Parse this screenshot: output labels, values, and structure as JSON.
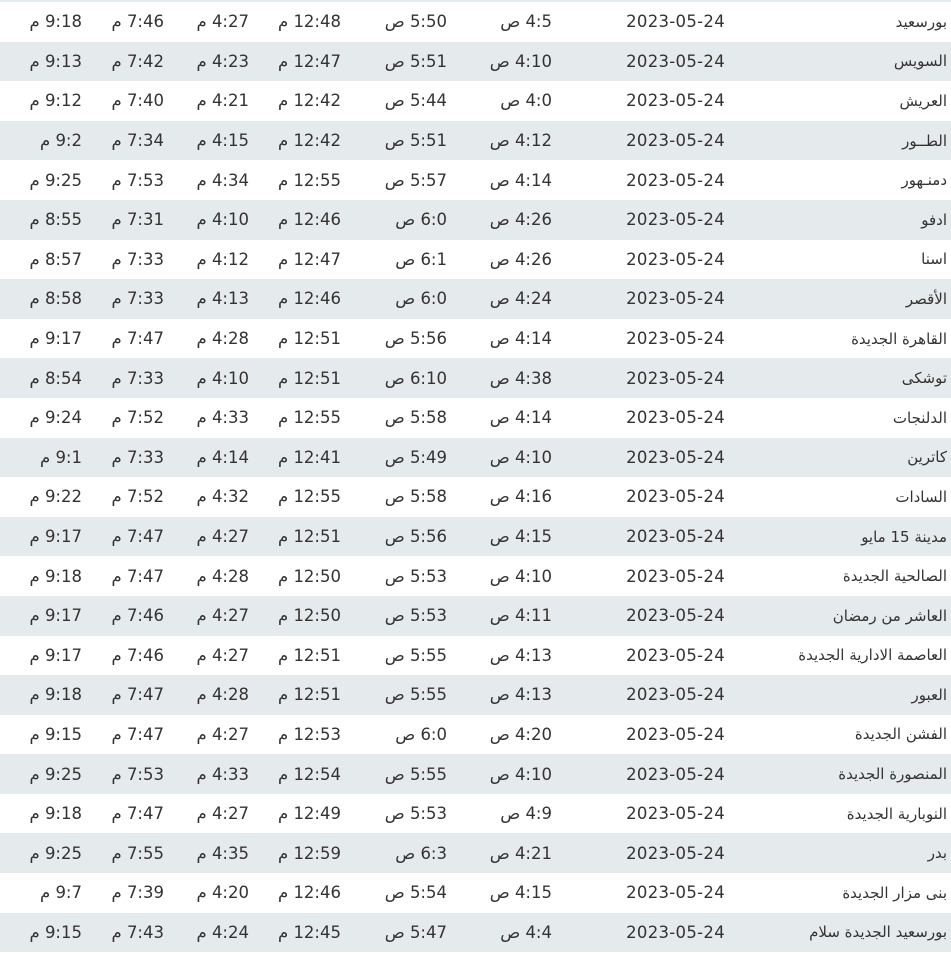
{
  "table": {
    "row_colors": [
      "#ffffff",
      "#e5eaec"
    ],
    "rows": [
      [
        "بورسعيد",
        "2023-05-24",
        "4:5 ص",
        "5:50 ص",
        "12:48 م",
        "4:27 م",
        "7:46 م",
        "9:18 م"
      ],
      [
        "السويس",
        "2023-05-24",
        "4:10 ص",
        "5:51 ص",
        "12:47 م",
        "4:23 م",
        "7:42 م",
        "9:13 م"
      ],
      [
        "العريش",
        "2023-05-24",
        "4:0 ص",
        "5:44 ص",
        "12:42 م",
        "4:21 م",
        "7:40 م",
        "9:12 م"
      ],
      [
        "الطــور",
        "2023-05-24",
        "4:12 ص",
        "5:51 ص",
        "12:42 م",
        "4:15 م",
        "7:34 م",
        "9:2 م"
      ],
      [
        "دمنـهور",
        "2023-05-24",
        "4:14 ص",
        "5:57 ص",
        "12:55 م",
        "4:34 م",
        "7:53 م",
        "9:25 م"
      ],
      [
        "ادفو",
        "2023-05-24",
        "4:26 ص",
        "6:0 ص",
        "12:46 م",
        "4:10 م",
        "7:31 م",
        "8:55 م"
      ],
      [
        "اسنا",
        "2023-05-24",
        "4:26 ص",
        "6:1 ص",
        "12:47 م",
        "4:12 م",
        "7:33 م",
        "8:57 م"
      ],
      [
        "الأقصر",
        "2023-05-24",
        "4:24 ص",
        "6:0 ص",
        "12:46 م",
        "4:13 م",
        "7:33 م",
        "8:58 م"
      ],
      [
        "القاهرة الجديدة",
        "2023-05-24",
        "4:14 ص",
        "5:56 ص",
        "12:51 م",
        "4:28 م",
        "7:47 م",
        "9:17 م"
      ],
      [
        "توشكى",
        "2023-05-24",
        "4:38 ص",
        "6:10 ص",
        "12:51 م",
        "4:10 م",
        "7:33 م",
        "8:54 م"
      ],
      [
        "الدلنجات",
        "2023-05-24",
        "4:14 ص",
        "5:58 ص",
        "12:55 م",
        "4:33 م",
        "7:52 م",
        "9:24 م"
      ],
      [
        "كاترين",
        "2023-05-24",
        "4:10 ص",
        "5:49 ص",
        "12:41 م",
        "4:14 م",
        "7:33 م",
        "9:1 م"
      ],
      [
        "السادات",
        "2023-05-24",
        "4:16 ص",
        "5:58 ص",
        "12:55 م",
        "4:32 م",
        "7:52 م",
        "9:22 م"
      ],
      [
        "مدينة 15 مايو",
        "2023-05-24",
        "4:15 ص",
        "5:56 ص",
        "12:51 م",
        "4:27 م",
        "7:47 م",
        "9:17 م"
      ],
      [
        "الصالحية الجديدة",
        "2023-05-24",
        "4:10 ص",
        "5:53 ص",
        "12:50 م",
        "4:28 م",
        "7:47 م",
        "9:18 م"
      ],
      [
        "العاشر من رمضان",
        "2023-05-24",
        "4:11 ص",
        "5:53 ص",
        "12:50 م",
        "4:27 م",
        "7:46 م",
        "9:17 م"
      ],
      [
        "العاصمة الادارية الجديدة",
        "2023-05-24",
        "4:13 ص",
        "5:55 ص",
        "12:51 م",
        "4:27 م",
        "7:46 م",
        "9:17 م"
      ],
      [
        "العبور",
        "2023-05-24",
        "4:13 ص",
        "5:55 ص",
        "12:51 م",
        "4:28 م",
        "7:47 م",
        "9:18 م"
      ],
      [
        "الفشن الجديدة",
        "2023-05-24",
        "4:20 ص",
        "6:0 ص",
        "12:53 م",
        "4:27 م",
        "7:47 م",
        "9:15 م"
      ],
      [
        "المنصورة الجديدة",
        "2023-05-24",
        "4:10 ص",
        "5:55 ص",
        "12:54 م",
        "4:33 م",
        "7:53 م",
        "9:25 م"
      ],
      [
        "النوبارية الجديدة",
        "2023-05-24",
        "4:9 ص",
        "5:53 ص",
        "12:49 م",
        "4:27 م",
        "7:47 م",
        "9:18 م"
      ],
      [
        "بدر",
        "2023-05-24",
        "4:21 ص",
        "6:3 ص",
        "12:59 م",
        "4:35 م",
        "7:55 م",
        "9:25 م"
      ],
      [
        "بنى مزار الجديدة",
        "2023-05-24",
        "4:15 ص",
        "5:54 ص",
        "12:46 م",
        "4:20 م",
        "7:39 م",
        "9:7 م"
      ],
      [
        "بورسعيد الجديدة سلام",
        "2023-05-24",
        "4:4 ص",
        "5:47 ص",
        "12:45 م",
        "4:24 م",
        "7:43 م",
        "9:15 م"
      ]
    ]
  }
}
